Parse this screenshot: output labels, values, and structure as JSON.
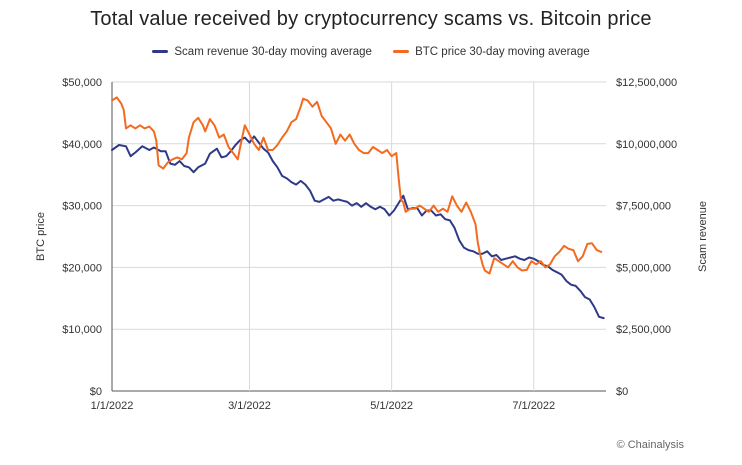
{
  "chart_data": {
    "type": "line",
    "title": "Total value received by cryptocurrency scams vs. Bitcoin price",
    "legend_position": "top-center",
    "y_left": {
      "label": "BTC price",
      "range": [
        0,
        50000
      ],
      "ticks": [
        0,
        10000,
        20000,
        30000,
        40000,
        50000
      ],
      "tick_labels": [
        "$0",
        "$10,000",
        "$20,000",
        "$30,000",
        "$40,000",
        "$50,000"
      ]
    },
    "y_right": {
      "label": "Scam revenue",
      "range": [
        0,
        12500000
      ],
      "ticks": [
        0,
        2500000,
        5000000,
        7500000,
        10000000,
        12500000
      ],
      "tick_labels": [
        "$0",
        "$2,500,000",
        "$5,000,000",
        "$7,500,000",
        "$10,000,000",
        "$12,500,000"
      ]
    },
    "x": {
      "range": [
        0,
        212
      ],
      "ticks": [
        0,
        59,
        120,
        181
      ],
      "tick_labels": [
        "1/1/2022",
        "3/1/2022",
        "5/1/2022",
        "7/1/2022"
      ]
    },
    "grid": true,
    "series": [
      {
        "name": "Scam revenue 30-day moving average",
        "color": "#2e3a87",
        "axis": "right",
        "points": [
          [
            0,
            9750000
          ],
          [
            3,
            9950000
          ],
          [
            6,
            9900000
          ],
          [
            8,
            9500000
          ],
          [
            10,
            9650000
          ],
          [
            13,
            9900000
          ],
          [
            16,
            9750000
          ],
          [
            18,
            9850000
          ],
          [
            21,
            9700000
          ],
          [
            23,
            9700000
          ],
          [
            25,
            9200000
          ],
          [
            27,
            9150000
          ],
          [
            29,
            9300000
          ],
          [
            31,
            9100000
          ],
          [
            33,
            9050000
          ],
          [
            35,
            8850000
          ],
          [
            37,
            9050000
          ],
          [
            40,
            9200000
          ],
          [
            42,
            9600000
          ],
          [
            45,
            9800000
          ],
          [
            47,
            9450000
          ],
          [
            49,
            9500000
          ],
          [
            51,
            9700000
          ],
          [
            53,
            9950000
          ],
          [
            55,
            10150000
          ],
          [
            57,
            10250000
          ],
          [
            59,
            10050000
          ],
          [
            61,
            10300000
          ],
          [
            63,
            10050000
          ],
          [
            65,
            9800000
          ],
          [
            67,
            9650000
          ],
          [
            69,
            9300000
          ],
          [
            71,
            9050000
          ],
          [
            73,
            8700000
          ],
          [
            75,
            8600000
          ],
          [
            77,
            8450000
          ],
          [
            79,
            8350000
          ],
          [
            81,
            8500000
          ],
          [
            83,
            8350000
          ],
          [
            85,
            8100000
          ],
          [
            87,
            7700000
          ],
          [
            89,
            7650000
          ],
          [
            91,
            7750000
          ],
          [
            93,
            7850000
          ],
          [
            95,
            7700000
          ],
          [
            97,
            7750000
          ],
          [
            99,
            7700000
          ],
          [
            101,
            7650000
          ],
          [
            103,
            7500000
          ],
          [
            105,
            7600000
          ],
          [
            107,
            7450000
          ],
          [
            109,
            7600000
          ],
          [
            111,
            7450000
          ],
          [
            113,
            7350000
          ],
          [
            115,
            7450000
          ],
          [
            117,
            7350000
          ],
          [
            119,
            7100000
          ],
          [
            121,
            7300000
          ],
          [
            123,
            7600000
          ],
          [
            125,
            7900000
          ],
          [
            127,
            7350000
          ],
          [
            129,
            7400000
          ],
          [
            131,
            7400000
          ],
          [
            133,
            7100000
          ],
          [
            135,
            7300000
          ],
          [
            137,
            7300000
          ],
          [
            139,
            7100000
          ],
          [
            141,
            7150000
          ],
          [
            143,
            6950000
          ],
          [
            145,
            6900000
          ],
          [
            147,
            6600000
          ],
          [
            149,
            6100000
          ],
          [
            151,
            5800000
          ],
          [
            153,
            5700000
          ],
          [
            155,
            5650000
          ],
          [
            157,
            5550000
          ],
          [
            159,
            5550000
          ],
          [
            161,
            5650000
          ],
          [
            163,
            5450000
          ],
          [
            165,
            5500000
          ],
          [
            167,
            5300000
          ],
          [
            169,
            5350000
          ],
          [
            171,
            5400000
          ],
          [
            173,
            5450000
          ],
          [
            175,
            5350000
          ],
          [
            177,
            5300000
          ],
          [
            179,
            5400000
          ],
          [
            181,
            5350000
          ],
          [
            183,
            5250000
          ],
          [
            185,
            5100000
          ],
          [
            187,
            5050000
          ],
          [
            189,
            4900000
          ],
          [
            191,
            4800000
          ],
          [
            193,
            4700000
          ],
          [
            195,
            4450000
          ],
          [
            197,
            4300000
          ],
          [
            199,
            4250000
          ],
          [
            201,
            4050000
          ],
          [
            203,
            3800000
          ],
          [
            205,
            3700000
          ],
          [
            207,
            3400000
          ],
          [
            209,
            3000000
          ],
          [
            211,
            2950000
          ]
        ]
      },
      {
        "name": "BTC price 30-day moving average",
        "color": "#f26b21",
        "axis": "left",
        "points": [
          [
            0,
            47000
          ],
          [
            2,
            47500
          ],
          [
            4,
            46500
          ],
          [
            5,
            45500
          ],
          [
            6,
            42500
          ],
          [
            8,
            43000
          ],
          [
            10,
            42500
          ],
          [
            12,
            43000
          ],
          [
            14,
            42500
          ],
          [
            16,
            42800
          ],
          [
            18,
            42000
          ],
          [
            19,
            40500
          ],
          [
            20,
            36500
          ],
          [
            22,
            36000
          ],
          [
            24,
            37000
          ],
          [
            26,
            37500
          ],
          [
            28,
            37800
          ],
          [
            30,
            37500
          ],
          [
            32,
            38500
          ],
          [
            33,
            41000
          ],
          [
            35,
            43500
          ],
          [
            37,
            44200
          ],
          [
            39,
            43000
          ],
          [
            40,
            42000
          ],
          [
            42,
            44000
          ],
          [
            44,
            43000
          ],
          [
            46,
            41000
          ],
          [
            48,
            41500
          ],
          [
            50,
            39500
          ],
          [
            52,
            38500
          ],
          [
            54,
            37500
          ],
          [
            55,
            39500
          ],
          [
            57,
            43000
          ],
          [
            59,
            41500
          ],
          [
            61,
            40000
          ],
          [
            63,
            39000
          ],
          [
            65,
            41000
          ],
          [
            67,
            39000
          ],
          [
            69,
            39000
          ],
          [
            71,
            39800
          ],
          [
            73,
            41000
          ],
          [
            75,
            42000
          ],
          [
            77,
            43500
          ],
          [
            79,
            44000
          ],
          [
            81,
            46000
          ],
          [
            82,
            47300
          ],
          [
            84,
            47000
          ],
          [
            86,
            46000
          ],
          [
            88,
            46800
          ],
          [
            90,
            44500
          ],
          [
            92,
            43500
          ],
          [
            94,
            42500
          ],
          [
            96,
            40000
          ],
          [
            98,
            41500
          ],
          [
            100,
            40500
          ],
          [
            102,
            41500
          ],
          [
            104,
            40000
          ],
          [
            106,
            39000
          ],
          [
            108,
            38500
          ],
          [
            110,
            38500
          ],
          [
            112,
            39500
          ],
          [
            114,
            39000
          ],
          [
            116,
            38500
          ],
          [
            118,
            39000
          ],
          [
            120,
            38000
          ],
          [
            122,
            38500
          ],
          [
            123,
            34500
          ],
          [
            124,
            31000
          ],
          [
            125,
            30500
          ],
          [
            126,
            29000
          ],
          [
            128,
            29500
          ],
          [
            130,
            29500
          ],
          [
            132,
            30000
          ],
          [
            134,
            29500
          ],
          [
            136,
            29000
          ],
          [
            138,
            30000
          ],
          [
            140,
            29000
          ],
          [
            142,
            29500
          ],
          [
            144,
            29000
          ],
          [
            146,
            31500
          ],
          [
            148,
            30000
          ],
          [
            150,
            29000
          ],
          [
            152,
            30500
          ],
          [
            154,
            29000
          ],
          [
            156,
            27000
          ],
          [
            157,
            24000
          ],
          [
            158,
            22000
          ],
          [
            159,
            20500
          ],
          [
            160,
            19500
          ],
          [
            162,
            19000
          ],
          [
            164,
            21500
          ],
          [
            166,
            21000
          ],
          [
            168,
            20500
          ],
          [
            170,
            20000
          ],
          [
            172,
            21000
          ],
          [
            174,
            20000
          ],
          [
            176,
            19500
          ],
          [
            178,
            19600
          ],
          [
            180,
            21000
          ],
          [
            182,
            20500
          ],
          [
            184,
            21000
          ],
          [
            186,
            20000
          ],
          [
            188,
            20500
          ],
          [
            190,
            21800
          ],
          [
            192,
            22500
          ],
          [
            194,
            23500
          ],
          [
            196,
            23000
          ],
          [
            198,
            22800
          ],
          [
            200,
            21000
          ],
          [
            202,
            21800
          ],
          [
            204,
            23800
          ],
          [
            206,
            23900
          ],
          [
            208,
            22800
          ],
          [
            210,
            22500
          ]
        ]
      }
    ]
  },
  "credit": "© Chainalysis"
}
